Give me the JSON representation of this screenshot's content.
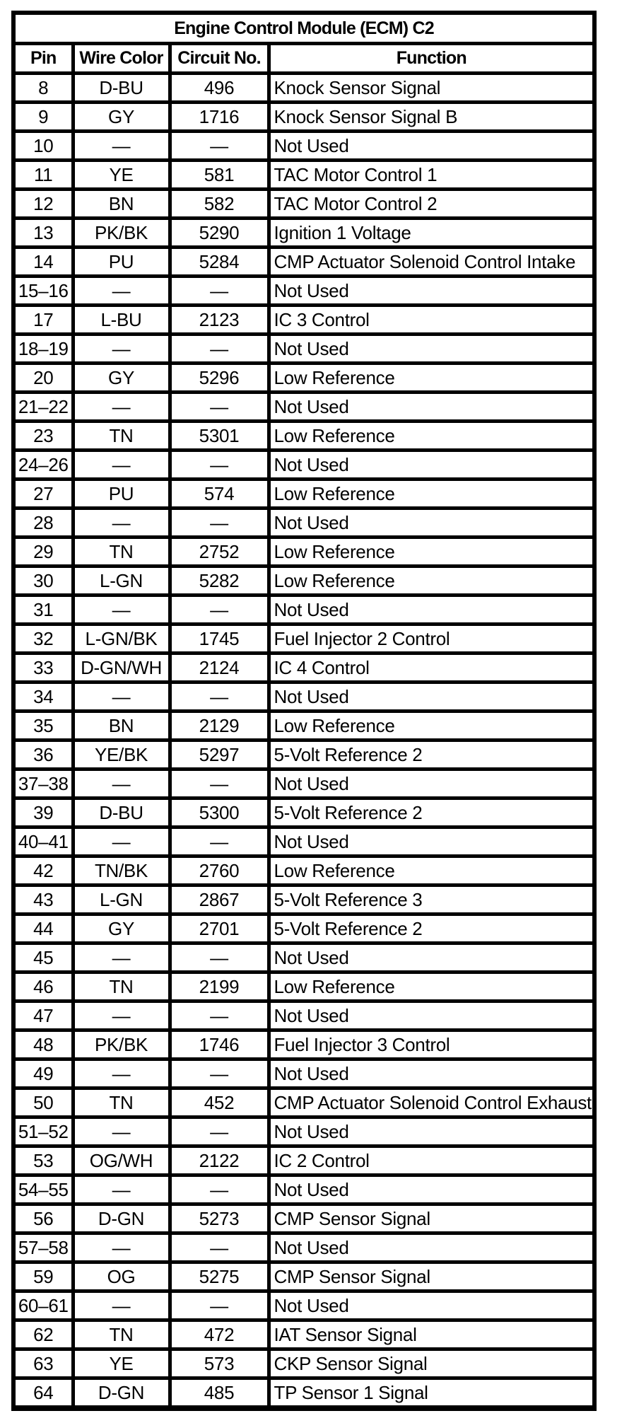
{
  "table": {
    "title": "Engine Control Module (ECM) C2",
    "columns": [
      "Pin",
      "Wire Color",
      "Circuit No.",
      "Function"
    ],
    "rows": [
      [
        "8",
        "D-BU",
        "496",
        "Knock Sensor Signal"
      ],
      [
        "9",
        "GY",
        "1716",
        "Knock Sensor Signal B"
      ],
      [
        "10",
        "—",
        "—",
        "Not Used"
      ],
      [
        "11",
        "YE",
        "581",
        "TAC Motor Control 1"
      ],
      [
        "12",
        "BN",
        "582",
        "TAC Motor Control 2"
      ],
      [
        "13",
        "PK/BK",
        "5290",
        "Ignition 1 Voltage"
      ],
      [
        "14",
        "PU",
        "5284",
        "CMP Actuator Solenoid Control Intake"
      ],
      [
        "15–16",
        "—",
        "—",
        "Not Used"
      ],
      [
        "17",
        "L-BU",
        "2123",
        "IC 3 Control"
      ],
      [
        "18–19",
        "—",
        "—",
        "Not Used"
      ],
      [
        "20",
        "GY",
        "5296",
        "Low Reference"
      ],
      [
        "21–22",
        "—",
        "—",
        "Not Used"
      ],
      [
        "23",
        "TN",
        "5301",
        "Low Reference"
      ],
      [
        "24–26",
        "—",
        "—",
        "Not Used"
      ],
      [
        "27",
        "PU",
        "574",
        "Low Reference"
      ],
      [
        "28",
        "—",
        "—",
        "Not Used"
      ],
      [
        "29",
        "TN",
        "2752",
        "Low Reference"
      ],
      [
        "30",
        "L-GN",
        "5282",
        "Low Reference"
      ],
      [
        "31",
        "—",
        "—",
        "Not Used"
      ],
      [
        "32",
        "L-GN/BK",
        "1745",
        "Fuel Injector 2 Control"
      ],
      [
        "33",
        "D-GN/WH",
        "2124",
        "IC 4 Control"
      ],
      [
        "34",
        "—",
        "—",
        "Not Used"
      ],
      [
        "35",
        "BN",
        "2129",
        "Low Reference"
      ],
      [
        "36",
        "YE/BK",
        "5297",
        "5-Volt Reference 2"
      ],
      [
        "37–38",
        "—",
        "—",
        "Not Used"
      ],
      [
        "39",
        "D-BU",
        "5300",
        "5-Volt Reference 2"
      ],
      [
        "40–41",
        "—",
        "—",
        "Not Used"
      ],
      [
        "42",
        "TN/BK",
        "2760",
        "Low Reference"
      ],
      [
        "43",
        "L-GN",
        "2867",
        "5-Volt Reference 3"
      ],
      [
        "44",
        "GY",
        "2701",
        "5-Volt Reference 2"
      ],
      [
        "45",
        "—",
        "—",
        "Not Used"
      ],
      [
        "46",
        "TN",
        "2199",
        "Low Reference"
      ],
      [
        "47",
        "—",
        "—",
        "Not Used"
      ],
      [
        "48",
        "PK/BK",
        "1746",
        "Fuel Injector 3 Control"
      ],
      [
        "49",
        "—",
        "—",
        "Not Used"
      ],
      [
        "50",
        "TN",
        "452",
        "CMP Actuator Solenoid Control Exhaust"
      ],
      [
        "51–52",
        "—",
        "—",
        "Not Used"
      ],
      [
        "53",
        "OG/WH",
        "2122",
        "IC 2 Control"
      ],
      [
        "54–55",
        "—",
        "—",
        "Not Used"
      ],
      [
        "56",
        "D-GN",
        "5273",
        "CMP Sensor Signal"
      ],
      [
        "57–58",
        "—",
        "—",
        "Not Used"
      ],
      [
        "59",
        "OG",
        "5275",
        "CMP Sensor Signal"
      ],
      [
        "60–61",
        "—",
        "—",
        "Not Used"
      ],
      [
        "62",
        "TN",
        "472",
        "IAT Sensor Signal"
      ],
      [
        "63",
        "YE",
        "573",
        "CKP Sensor Signal"
      ],
      [
        "64",
        "D-GN",
        "485",
        "TP Sensor 1 Signal"
      ]
    ]
  },
  "colors": {
    "background": "#ffffff",
    "border": "#000000",
    "text": "#000000"
  }
}
